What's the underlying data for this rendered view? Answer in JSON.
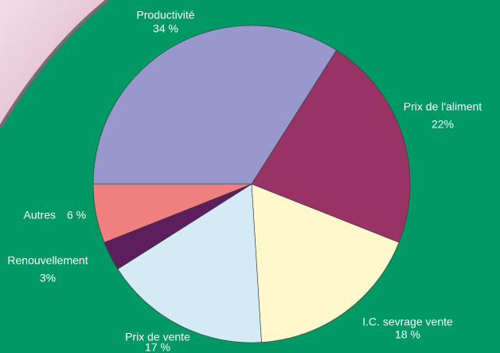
{
  "chart_data": {
    "type": "pie",
    "categories": [
      "Productivité",
      "Prix de l'aliment",
      "I.C. sevrage vente",
      "Prix de vente",
      "Renouvellement",
      "Autres"
    ],
    "values": [
      34,
      22,
      18,
      17,
      3,
      6
    ],
    "value_labels": [
      "34 %",
      "22%",
      "18 %",
      "17 %",
      "3%",
      "6 %"
    ],
    "colors": [
      "#9898cc",
      "#993366",
      "#fff8cc",
      "#d4eaf4",
      "#5c1e5c",
      "#f08080"
    ]
  }
}
